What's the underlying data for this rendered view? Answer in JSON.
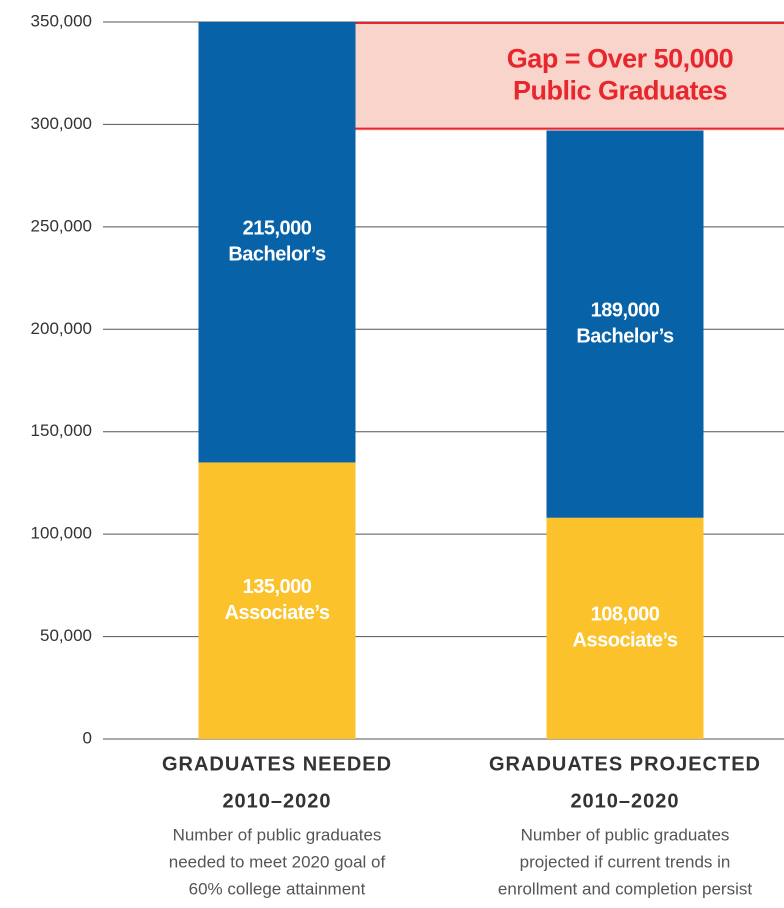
{
  "chart_data": {
    "type": "stacked_bar",
    "categories": [
      "GRADUATES NEEDED",
      "GRADUATES PROJECTED"
    ],
    "category_periods": [
      "2010–2020",
      "2010–2020"
    ],
    "category_notes": [
      [
        "Number of public graduates",
        "needed to meet 2020 goal of",
        "60% college attainment"
      ],
      [
        "Number of public graduates",
        "projected if current trends in",
        "enrollment and completion persist"
      ]
    ],
    "series": [
      {
        "name": "Associate’s",
        "color": "#fcc22b",
        "values": [
          135000,
          108000
        ],
        "value_labels": [
          "135,000",
          "108,000"
        ]
      },
      {
        "name": "Bachelor’s",
        "color": "#0862a8",
        "values": [
          215000,
          189000
        ],
        "value_labels": [
          "215,000",
          "189,000"
        ]
      }
    ],
    "annotation": [
      "Gap = Over 50,000",
      "Public Graduates"
    ],
    "ylim": [
      0,
      350000
    ],
    "yticks": [
      0,
      {
        "value": 50000,
        "label": "50,000"
      },
      {
        "value": 100000,
        "label": "100,000"
      },
      {
        "value": 150000,
        "label": "150,000"
      },
      {
        "value": 200000,
        "label": "200,000"
      },
      {
        "value": 250000,
        "label": "250,000"
      },
      {
        "value": 300000,
        "label": "300,000"
      },
      {
        "value": 350000,
        "label": "350,000"
      }
    ],
    "grid": true
  }
}
